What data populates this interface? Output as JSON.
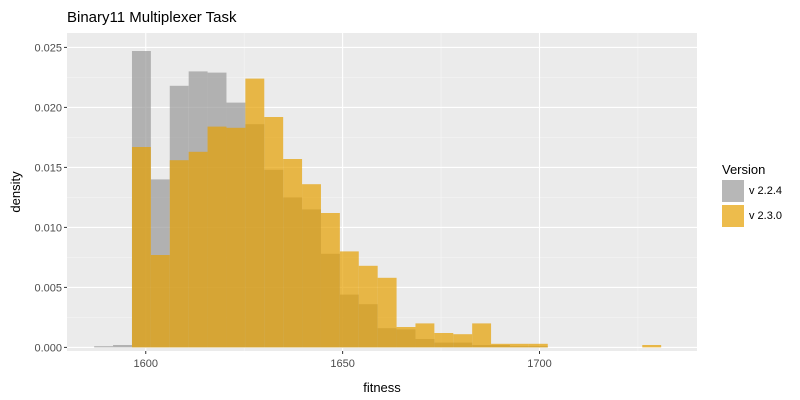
{
  "chart_data": {
    "type": "bar",
    "title": "Binary11 Multiplexer Task",
    "xlabel": "fitness",
    "ylabel": "density",
    "xlim": [
      1580,
      1740
    ],
    "ylim": [
      -0.0003,
      0.0262
    ],
    "bin_width": 4.8,
    "x_ticks": [
      1600,
      1650,
      1700
    ],
    "x_tick_labels": [
      "1600",
      "1650",
      "1700"
    ],
    "y_ticks": [
      0.0,
      0.005,
      0.01,
      0.015,
      0.02,
      0.025
    ],
    "y_tick_labels": [
      "0.000",
      "0.005",
      "0.010",
      "0.015",
      "0.020",
      "0.025"
    ],
    "legend": {
      "title": "Version",
      "position": "right",
      "entries": [
        "v 2.2.4",
        "v 2.3.0"
      ]
    },
    "series": [
      {
        "name": "v 2.2.4",
        "color": "#999999",
        "opacity": 0.7,
        "bins": [
          {
            "x": 1589.3,
            "y": 0.0001
          },
          {
            "x": 1594.1,
            "y": 0.0002
          },
          {
            "x": 1598.9,
            "y": 0.0247
          },
          {
            "x": 1603.7,
            "y": 0.014
          },
          {
            "x": 1608.5,
            "y": 0.0218
          },
          {
            "x": 1613.3,
            "y": 0.023
          },
          {
            "x": 1618.1,
            "y": 0.0229
          },
          {
            "x": 1622.9,
            "y": 0.0204
          },
          {
            "x": 1627.7,
            "y": 0.0186
          },
          {
            "x": 1632.5,
            "y": 0.0148
          },
          {
            "x": 1637.3,
            "y": 0.0125
          },
          {
            "x": 1642.1,
            "y": 0.0115
          },
          {
            "x": 1646.9,
            "y": 0.0078
          },
          {
            "x": 1651.7,
            "y": 0.0044
          },
          {
            "x": 1656.5,
            "y": 0.0036
          },
          {
            "x": 1661.3,
            "y": 0.0016
          },
          {
            "x": 1666.1,
            "y": 0.0015
          },
          {
            "x": 1670.9,
            "y": 0.0007
          },
          {
            "x": 1675.7,
            "y": 0.0004
          },
          {
            "x": 1680.5,
            "y": 0.0004
          },
          {
            "x": 1685.3,
            "y": 0.0002
          },
          {
            "x": 1690.1,
            "y": 0.0002
          },
          {
            "x": 1694.9,
            "y": 0.0001
          },
          {
            "x": 1699.7,
            "y": 0.0001
          }
        ]
      },
      {
        "name": "v 2.3.0",
        "color": "#E69F00",
        "opacity": 0.7,
        "bins": [
          {
            "x": 1598.9,
            "y": 0.0167
          },
          {
            "x": 1603.7,
            "y": 0.0077
          },
          {
            "x": 1608.5,
            "y": 0.0156
          },
          {
            "x": 1613.3,
            "y": 0.0163
          },
          {
            "x": 1618.1,
            "y": 0.0184
          },
          {
            "x": 1622.9,
            "y": 0.0183
          },
          {
            "x": 1627.7,
            "y": 0.0224
          },
          {
            "x": 1632.5,
            "y": 0.0192
          },
          {
            "x": 1637.3,
            "y": 0.0157
          },
          {
            "x": 1642.1,
            "y": 0.0136
          },
          {
            "x": 1646.9,
            "y": 0.0112
          },
          {
            "x": 1651.7,
            "y": 0.008
          },
          {
            "x": 1656.5,
            "y": 0.0068
          },
          {
            "x": 1661.3,
            "y": 0.0058
          },
          {
            "x": 1666.1,
            "y": 0.0017
          },
          {
            "x": 1670.9,
            "y": 0.002
          },
          {
            "x": 1675.7,
            "y": 0.0012
          },
          {
            "x": 1680.5,
            "y": 0.0011
          },
          {
            "x": 1685.3,
            "y": 0.002
          },
          {
            "x": 1690.1,
            "y": 0.0003
          },
          {
            "x": 1694.9,
            "y": 0.0003
          },
          {
            "x": 1699.7,
            "y": 0.0003
          },
          {
            "x": 1728.5,
            "y": 0.0002
          }
        ]
      }
    ]
  }
}
